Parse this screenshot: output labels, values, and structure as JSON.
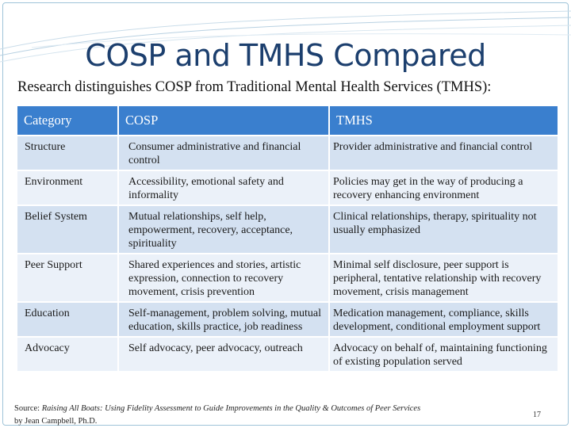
{
  "title": "COSP and TMHS Compared",
  "subtitle": "Research distinguishes COSP from Traditional Mental Health Services (TMHS):",
  "table": {
    "headers": [
      "Category",
      "COSP",
      "TMHS"
    ],
    "rows": [
      [
        "Structure",
        "Consumer administrative and financial control",
        "Provider administrative and financial control"
      ],
      [
        "Environment",
        "Accessibility, emotional safety and informality",
        "Policies may get in the way of producing a recovery enhancing environment"
      ],
      [
        "Belief System",
        "Mutual relationships, self help, empowerment, recovery, acceptance, spirituality",
        "Clinical relationships, therapy, spirituality not usually emphasized"
      ],
      [
        "Peer Support",
        "Shared experiences and stories, artistic expression, connection to recovery movement, crisis prevention",
        "Minimal self disclosure, peer support is peripheral, tentative relationship with recovery movement, crisis management"
      ],
      [
        "Education",
        "Self-management, problem solving, mutual education, skills practice, job readiness",
        "Medication management, compliance, skills development, conditional employment support"
      ],
      [
        "Advocacy",
        "Self advocacy, peer advocacy, outreach",
        "Advocacy on behalf of, maintaining functioning of existing population served"
      ]
    ]
  },
  "source": {
    "prefix": "Source: ",
    "work_title": "Raising All Boats: Using Fidelity Assessment to Guide Improvements in the Quality & Outcomes of Peer Services",
    "author": "by Jean Campbell, Ph.D."
  },
  "page_number": "17",
  "colors": {
    "title": "#1c3f6e",
    "header_bg": "#3a7fce",
    "row_odd": "#d4e1f1",
    "row_even": "#ebf1f9"
  }
}
